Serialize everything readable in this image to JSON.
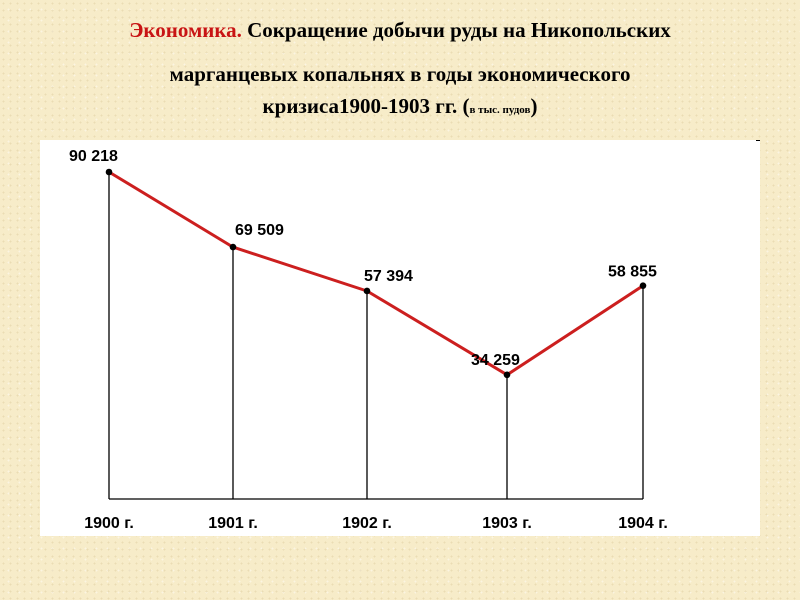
{
  "page": {
    "title_accent": "Экономика.",
    "title_line1": " Сокращение добычи руды на Никопольских",
    "title_line2": "марганцевых копальнях в годы экономического",
    "title_line3": "кризиса1900-1903 гг. (",
    "title_unit": "в тыс. пудов",
    "title_close": ")"
  },
  "colors": {
    "line": "#cc1f1f",
    "point": "#000000",
    "drop_line": "#000000",
    "accent": "#c81414"
  },
  "chart_data": {
    "type": "line",
    "title": "Экономика. Сокращение добычи руды на Никопольских марганцевых копальнях в годы экономического кризиса1900-1903 гг. (в тыс. пудов)",
    "categories": [
      "1900 г.",
      "1901 г.",
      "1902 г.",
      "1903 г.",
      "1904 г."
    ],
    "series": [
      {
        "values": [
          90218,
          69509,
          57394,
          34259,
          58855
        ],
        "labels": [
          "90 218",
          "69 509",
          "57 394",
          "34 259",
          "58 855"
        ]
      }
    ],
    "ylim": [
      0,
      100000
    ],
    "grid": false,
    "legend": false,
    "xlabel": "",
    "ylabel": ""
  }
}
